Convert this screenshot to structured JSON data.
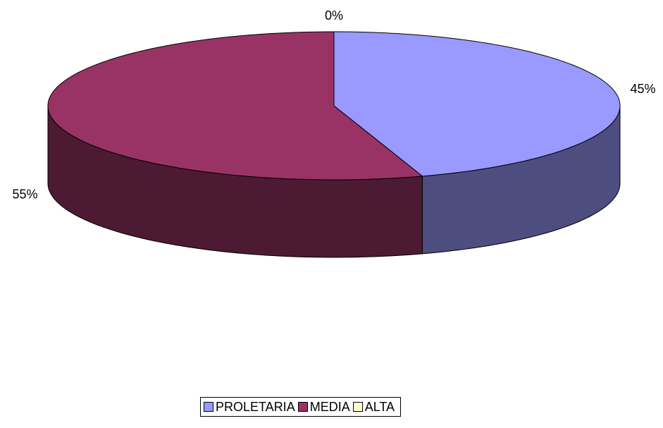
{
  "chart_data": {
    "type": "pie",
    "categories": [
      "PROLETARIA",
      "MEDIA",
      "ALTA"
    ],
    "values": [
      45,
      55,
      0
    ],
    "value_labels": [
      "45%",
      "55%",
      "0%"
    ],
    "colors": [
      "#9999ff",
      "#993366",
      "#ffffcc"
    ],
    "legend": "bottom"
  }
}
